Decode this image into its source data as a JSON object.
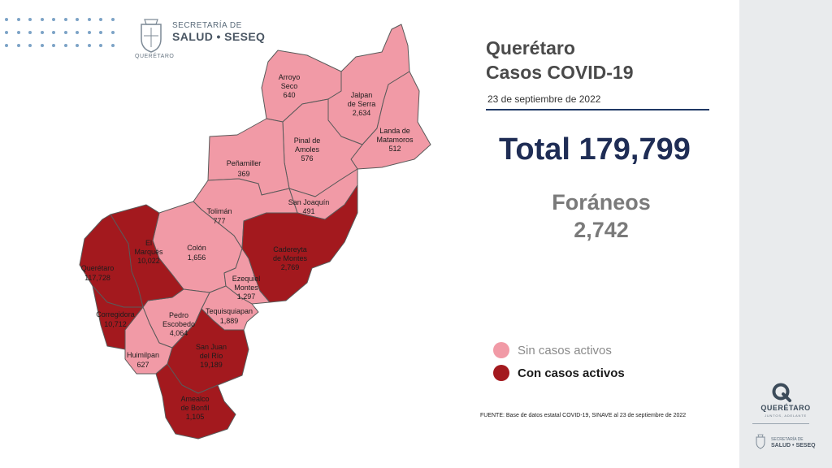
{
  "header": {
    "logo_line1": "SECRETARÍA DE",
    "logo_line2": "SALUD • SESEQ",
    "logo_subtext": "QUERÉTARO"
  },
  "title_line1": "Querétaro",
  "title_line2": "Casos COVID-19",
  "date": "23 de septiembre de 2022",
  "total_label": "Total 179,799",
  "foraneos_label": "Foráneos",
  "foraneos_value": "2,742",
  "legend": [
    {
      "label": "Sin casos activos",
      "color": "#f19aa6"
    },
    {
      "label": "Con casos activos",
      "color": "#a3191e"
    }
  ],
  "colors": {
    "sin_casos": "#f19aa6",
    "con_casos": "#a3191e",
    "border": "#5a5a5a"
  },
  "municipalities": [
    {
      "name": "Arroyo Seco",
      "value": "640",
      "status": "sin"
    },
    {
      "name": "Jalpan de Serra",
      "value": "2,634",
      "status": "sin"
    },
    {
      "name": "Landa de Matamoros",
      "value": "512",
      "status": "sin"
    },
    {
      "name": "Pinal de Amoles",
      "value": "576",
      "status": "sin"
    },
    {
      "name": "Peñamiller",
      "value": "369",
      "status": "sin"
    },
    {
      "name": "San Joaquín",
      "value": "491",
      "status": "sin"
    },
    {
      "name": "Tolimán",
      "value": "777",
      "status": "sin"
    },
    {
      "name": "Cadereyta de Montes",
      "value": "2,769",
      "status": "con"
    },
    {
      "name": "Colón",
      "value": "1,656",
      "status": "sin"
    },
    {
      "name": "El Marqués",
      "value": "10,022",
      "status": "con"
    },
    {
      "name": "Querétaro",
      "value": "117,728",
      "status": "con"
    },
    {
      "name": "Ezequiel Montes",
      "value": "1,297",
      "status": "sin"
    },
    {
      "name": "Corregidora",
      "value": "10,712",
      "status": "con"
    },
    {
      "name": "Pedro Escobedo",
      "value": "4,064",
      "status": "sin"
    },
    {
      "name": "Tequisquiapan",
      "value": "1,889",
      "status": "sin"
    },
    {
      "name": "Huimilpan",
      "value": "627",
      "status": "sin"
    },
    {
      "name": "San Juan del Río",
      "value": "19,189",
      "status": "con"
    },
    {
      "name": "Amealco de Bonfil",
      "value": "1,105",
      "status": "con"
    }
  ],
  "source_text": "FUENTE: Base de datos estatal COVID-19, SINAVE al 23 de septiembre de 2022",
  "sidebar": {
    "brand": "QUERÉTARO",
    "tagline": "JUNTOS, ADELANTE",
    "line1": "SECRETARÍA DE",
    "line2": "SALUD • SESEQ"
  }
}
